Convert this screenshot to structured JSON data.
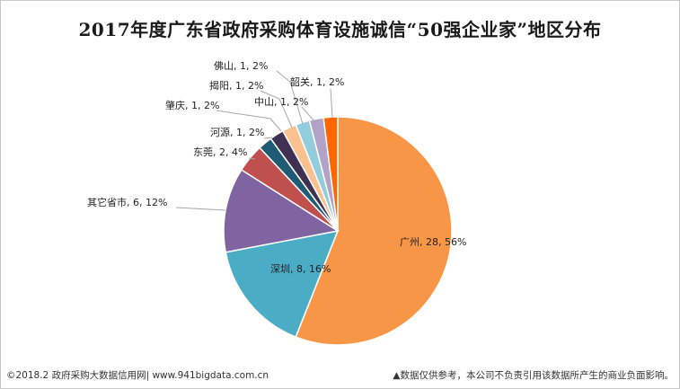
{
  "chart_data": {
    "type": "pie",
    "title": "2017年度广东省政府采购体育设施诚信“50强企业家”地区分布",
    "slices": [
      {
        "label": "广州",
        "value": 28,
        "percent": "56%",
        "color": "#F79646"
      },
      {
        "label": "深圳",
        "value": 8,
        "percent": "16%",
        "color": "#4BACC6"
      },
      {
        "label": "其它省市",
        "value": 6,
        "percent": "12%",
        "color": "#8064A2"
      },
      {
        "label": "东莞",
        "value": 2,
        "percent": "4%",
        "color": "#C0504D"
      },
      {
        "label": "河源",
        "value": 1,
        "percent": "2%",
        "color": "#1F5C73"
      },
      {
        "label": "肇庆",
        "value": 1,
        "percent": "2%",
        "color": "#3F3151"
      },
      {
        "label": "揭阳",
        "value": 1,
        "percent": "2%",
        "color": "#FAC090"
      },
      {
        "label": "佛山",
        "value": 1,
        "percent": "2%",
        "color": "#92CDDC"
      },
      {
        "label": "中山",
        "value": 1,
        "percent": "2%",
        "color": "#B3A2C7"
      },
      {
        "label": "韶关",
        "value": 1,
        "percent": "2%",
        "color": "#FF6600"
      }
    ]
  },
  "footer": {
    "left": "©2018.2 政府采购大数据信用网| www.941bigdata.com.cn",
    "right": "▲数据仅供参考，本公司不负责引用该数据所产生的商业负面影响。"
  }
}
